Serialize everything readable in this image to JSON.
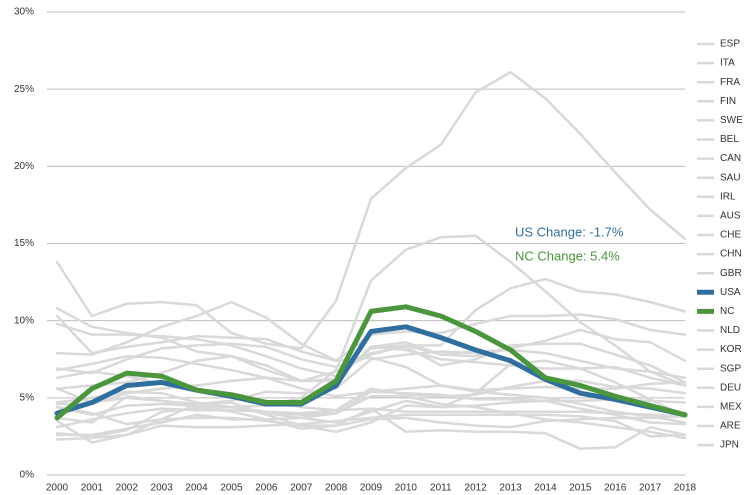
{
  "chart_data": {
    "type": "line",
    "x": [
      2000,
      2001,
      2002,
      2003,
      2004,
      2005,
      2006,
      2007,
      2008,
      2009,
      2010,
      2011,
      2012,
      2013,
      2014,
      2015,
      2016,
      2017,
      2018
    ],
    "xlim": [
      2000,
      2018
    ],
    "ylim": [
      0,
      30
    ],
    "yticks": [
      {
        "value": 0,
        "label": "0%"
      },
      {
        "value": 5,
        "label": "5%"
      },
      {
        "value": 10,
        "label": "10%"
      },
      {
        "value": 15,
        "label": "15%"
      },
      {
        "value": 20,
        "label": "20%"
      },
      {
        "value": 25,
        "label": "25%"
      },
      {
        "value": 30,
        "label": "30%"
      }
    ],
    "grid": true,
    "legend": "right",
    "annotations": [
      {
        "text": "US Change: -1.7%",
        "color": "#2f6f9f"
      },
      {
        "text": "NC Change: 5.4%",
        "color": "#4a963c"
      }
    ],
    "series": [
      {
        "name": "ESP",
        "color": "#d9d9d9",
        "values": [
          13.8,
          10.3,
          11.1,
          11.2,
          11.0,
          9.2,
          8.5,
          8.2,
          11.3,
          17.9,
          19.9,
          21.4,
          24.8,
          26.1,
          24.4,
          22.1,
          19.6,
          17.2,
          15.3
        ]
      },
      {
        "name": "ITA",
        "color": "#d9d9d9",
        "values": [
          10.8,
          9.6,
          9.2,
          8.9,
          8.0,
          7.7,
          6.8,
          6.1,
          6.7,
          7.8,
          8.4,
          8.4,
          10.7,
          12.1,
          12.7,
          11.9,
          11.7,
          11.2,
          10.6
        ]
      },
      {
        "name": "FRA",
        "color": "#d9d9d9",
        "values": [
          10.3,
          7.9,
          8.3,
          8.6,
          9.0,
          8.9,
          8.8,
          8.0,
          7.4,
          9.1,
          9.3,
          9.2,
          9.8,
          10.3,
          10.3,
          10.4,
          10.1,
          9.4,
          9.1
        ]
      },
      {
        "name": "FIN",
        "color": "#d9d9d9",
        "values": [
          9.8,
          9.1,
          9.1,
          9.0,
          8.8,
          8.4,
          7.7,
          6.9,
          6.4,
          8.2,
          8.4,
          7.8,
          7.7,
          8.2,
          8.7,
          9.4,
          8.8,
          8.6,
          7.4
        ]
      },
      {
        "name": "SWE",
        "color": "#d9d9d9",
        "values": [
          5.6,
          5.8,
          6.0,
          6.6,
          7.4,
          7.7,
          7.1,
          6.1,
          6.2,
          8.3,
          8.6,
          7.8,
          8.0,
          8.1,
          7.9,
          7.4,
          6.9,
          6.7,
          6.3
        ]
      },
      {
        "name": "BEL",
        "color": "#d9d9d9",
        "values": [
          6.9,
          6.6,
          7.5,
          8.2,
          8.4,
          8.5,
          8.3,
          7.5,
          7.0,
          7.9,
          8.3,
          7.1,
          7.5,
          8.4,
          8.5,
          8.5,
          7.8,
          7.1,
          6.0
        ]
      },
      {
        "name": "CAN",
        "color": "#d9d9d9",
        "values": [
          6.8,
          7.2,
          7.7,
          7.6,
          7.2,
          6.8,
          6.3,
          6.1,
          6.1,
          8.3,
          8.1,
          7.5,
          7.3,
          7.1,
          6.9,
          6.9,
          7.0,
          6.3,
          5.8
        ]
      },
      {
        "name": "SAU",
        "color": "#d9d9d9",
        "values": [
          4.6,
          4.6,
          5.3,
          5.6,
          5.8,
          6.1,
          6.3,
          5.6,
          5.1,
          5.4,
          5.6,
          5.8,
          5.5,
          5.6,
          5.7,
          5.6,
          5.6,
          5.9,
          6.0
        ]
      },
      {
        "name": "IRL",
        "color": "#d9d9d9",
        "values": [
          4.4,
          3.9,
          4.5,
          4.6,
          4.5,
          4.4,
          4.5,
          5.0,
          6.8,
          12.6,
          14.6,
          15.4,
          15.5,
          13.8,
          11.9,
          9.9,
          8.4,
          6.7,
          5.8
        ]
      },
      {
        "name": "AUS",
        "color": "#d9d9d9",
        "values": [
          6.3,
          6.7,
          6.4,
          5.9,
          5.4,
          5.0,
          4.8,
          4.4,
          4.2,
          5.6,
          5.2,
          5.1,
          5.2,
          5.7,
          6.1,
          6.1,
          5.7,
          5.6,
          5.3
        ]
      },
      {
        "name": "CHE",
        "color": "#d9d9d9",
        "values": [
          2.7,
          2.5,
          2.9,
          4.1,
          4.3,
          4.4,
          4.0,
          3.7,
          3.4,
          4.1,
          4.8,
          4.4,
          4.5,
          4.7,
          4.8,
          4.8,
          4.9,
          4.8,
          4.7
        ]
      },
      {
        "name": "CHN",
        "color": "#d9d9d9",
        "values": [
          3.1,
          3.6,
          4.0,
          4.3,
          4.2,
          4.2,
          4.1,
          4.0,
          4.2,
          4.3,
          4.1,
          4.1,
          4.1,
          4.1,
          4.1,
          4.1,
          4.0,
          3.9,
          3.8
        ]
      },
      {
        "name": "GBR",
        "color": "#d9d9d9",
        "values": [
          5.6,
          4.7,
          5.0,
          4.8,
          4.6,
          4.8,
          5.4,
          5.3,
          5.6,
          7.5,
          7.8,
          8.0,
          7.9,
          7.5,
          6.1,
          5.3,
          4.8,
          4.3,
          4.0
        ]
      },
      {
        "name": "USA",
        "color": "#2f6f9f",
        "highlight": true,
        "values": [
          4.0,
          4.7,
          5.8,
          6.0,
          5.5,
          5.1,
          4.6,
          4.6,
          5.8,
          9.3,
          9.6,
          8.9,
          8.1,
          7.4,
          6.2,
          5.3,
          4.9,
          4.4,
          3.9
        ]
      },
      {
        "name": "NC",
        "color": "#4a963c",
        "highlight": true,
        "values": [
          3.7,
          5.6,
          6.6,
          6.4,
          5.5,
          5.2,
          4.7,
          4.7,
          6.1,
          10.6,
          10.9,
          10.3,
          9.3,
          8.1,
          6.3,
          5.8,
          5.1,
          4.5,
          3.9
        ]
      },
      {
        "name": "NLD",
        "color": "#d9d9d9",
        "values": [
          3.5,
          2.1,
          2.6,
          3.6,
          4.6,
          4.7,
          3.9,
          3.2,
          2.8,
          3.4,
          4.5,
          4.4,
          5.3,
          7.2,
          7.4,
          6.9,
          6.0,
          4.9,
          3.8
        ]
      },
      {
        "name": "KOR",
        "color": "#d9d9d9",
        "values": [
          4.4,
          4.0,
          3.3,
          3.6,
          3.7,
          3.7,
          3.5,
          3.2,
          3.2,
          3.6,
          3.7,
          3.4,
          3.2,
          3.1,
          3.5,
          3.6,
          3.7,
          3.7,
          3.8
        ]
      },
      {
        "name": "SGP",
        "color": "#d9d9d9",
        "values": [
          3.7,
          3.4,
          5.1,
          4.8,
          4.4,
          4.1,
          3.6,
          3.0,
          3.2,
          4.3,
          2.8,
          2.9,
          2.8,
          2.8,
          2.7,
          1.7,
          1.8,
          3.1,
          2.6
        ]
      },
      {
        "name": "DEU",
        "color": "#d9d9d9",
        "values": [
          7.9,
          7.8,
          8.6,
          9.6,
          10.3,
          11.2,
          10.2,
          8.5,
          7.4,
          7.6,
          7.0,
          5.8,
          5.4,
          5.2,
          5.0,
          4.6,
          4.1,
          3.8,
          3.4
        ]
      },
      {
        "name": "MEX",
        "color": "#d9d9d9",
        "values": [
          2.6,
          2.6,
          3.0,
          3.4,
          3.9,
          3.6,
          3.6,
          3.7,
          4.0,
          5.4,
          5.3,
          5.2,
          4.9,
          4.9,
          4.8,
          4.3,
          3.9,
          3.4,
          3.3
        ]
      },
      {
        "name": "ARE",
        "color": "#d9d9d9",
        "values": [
          2.3,
          2.4,
          2.6,
          3.2,
          3.1,
          3.1,
          3.2,
          3.3,
          3.5,
          3.7,
          3.9,
          3.9,
          3.9,
          3.9,
          3.9,
          3.8,
          3.5,
          2.5,
          2.6
        ]
      },
      {
        "name": "JPN",
        "color": "#d9d9d9",
        "values": [
          4.7,
          5.0,
          5.4,
          5.3,
          4.7,
          4.4,
          4.1,
          3.9,
          4.0,
          5.1,
          5.1,
          4.6,
          4.4,
          4.0,
          3.6,
          3.4,
          3.1,
          2.8,
          2.4
        ]
      }
    ]
  }
}
